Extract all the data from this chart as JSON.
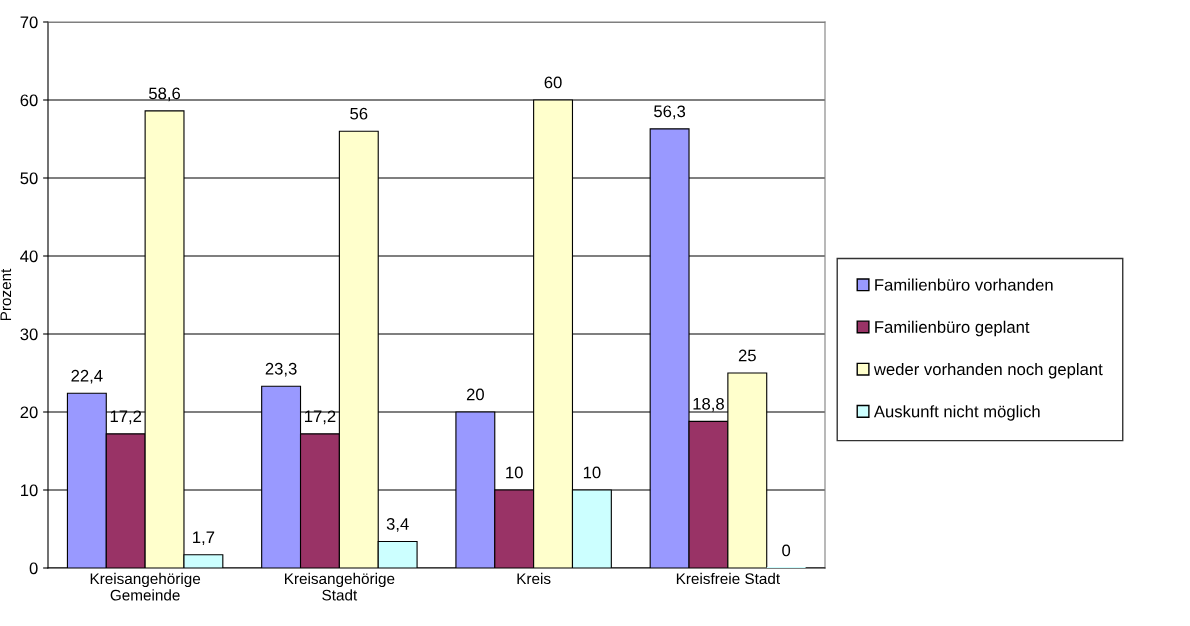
{
  "chart_data": {
    "type": "bar",
    "ylabel": "Prozent",
    "categories": [
      "Kreisangehörige\nGemeinde",
      "Kreisangehörige\nStadt",
      "Kreis",
      "Kreisfreie Stadt"
    ],
    "series": [
      {
        "name": "Familienbüro vorhanden",
        "color": "#9999ff",
        "values": [
          22.4,
          23.3,
          20,
          56.3
        ],
        "value_labels": [
          "22,4",
          "23,3",
          "20",
          "56,3"
        ]
      },
      {
        "name": "Familienbüro geplant",
        "color": "#993366",
        "values": [
          17.2,
          17.2,
          10,
          18.8
        ],
        "value_labels": [
          "17,2",
          "17,2",
          "10",
          "18,8"
        ]
      },
      {
        "name": "weder vorhanden noch geplant",
        "color": "#ffffcc",
        "values": [
          58.6,
          56,
          60,
          25
        ],
        "value_labels": [
          "58,6",
          "56",
          "60",
          "25"
        ]
      },
      {
        "name": "Auskunft nicht möglich",
        "color": "#ccffff",
        "values": [
          1.7,
          3.4,
          10,
          0
        ],
        "value_labels": [
          "1,7",
          "3,4",
          "10",
          "0"
        ]
      }
    ],
    "ylim": [
      0,
      70
    ],
    "yticks": [
      0,
      10,
      20,
      30,
      40,
      50,
      60,
      70
    ],
    "grid": "y",
    "legend": "right"
  }
}
